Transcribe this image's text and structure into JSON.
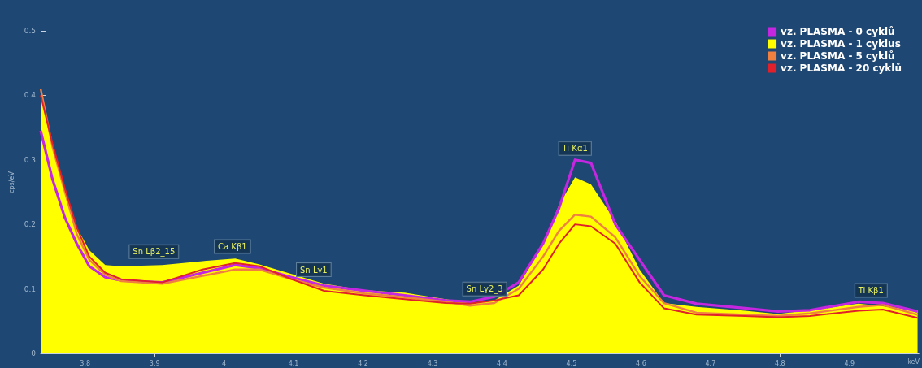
{
  "chart_data": {
    "type": "line",
    "xlabel": "keV",
    "ylabel": "cps/eV",
    "xlim": [
      3.736,
      5.0
    ],
    "ylim": [
      0,
      0.53
    ],
    "xticks": [
      3.8,
      3.9,
      4,
      4.1,
      4.2,
      4.3,
      4.4,
      4.5,
      4.6,
      4.7,
      4.8,
      4.9
    ],
    "yticks": [
      0,
      0.1,
      0.2,
      0.3,
      0.4,
      0.5
    ],
    "x": [
      3.736,
      3.753,
      3.771,
      3.788,
      3.806,
      3.829,
      3.852,
      3.911,
      3.969,
      4.016,
      4.051,
      4.097,
      4.144,
      4.202,
      4.26,
      4.319,
      4.354,
      4.389,
      4.424,
      4.459,
      4.482,
      4.505,
      4.528,
      4.563,
      4.598,
      4.633,
      4.68,
      4.75,
      4.797,
      4.843,
      4.913,
      4.948,
      4.998
    ],
    "legend": "top right",
    "grid": false,
    "marker": "none",
    "line_style": "solid",
    "series": [
      {
        "name": "vz. PLASMA - 0 cyklů",
        "color": "#c526e0",
        "values": [
          0.345,
          0.27,
          0.21,
          0.17,
          0.135,
          0.118,
          0.113,
          0.11,
          0.125,
          0.137,
          0.132,
          0.118,
          0.105,
          0.097,
          0.09,
          0.082,
          0.08,
          0.088,
          0.11,
          0.17,
          0.225,
          0.3,
          0.295,
          0.2,
          0.145,
          0.09,
          0.077,
          0.07,
          0.065,
          0.067,
          0.08,
          0.078,
          0.065
        ]
      },
      {
        "name": "vz. PLASMA - 1 cyklus",
        "type": "area",
        "color": "#ffff00",
        "values": [
          0.41,
          0.32,
          0.25,
          0.195,
          0.16,
          0.137,
          0.135,
          0.137,
          0.143,
          0.147,
          0.138,
          0.123,
          0.108,
          0.098,
          0.094,
          0.084,
          0.078,
          0.082,
          0.105,
          0.17,
          0.23,
          0.273,
          0.262,
          0.205,
          0.13,
          0.078,
          0.072,
          0.066,
          0.061,
          0.067,
          0.077,
          0.073,
          0.067
        ]
      },
      {
        "name": "vz. PLASMA - 5 cyklů",
        "color": "#f08040",
        "values": [
          0.41,
          0.32,
          0.25,
          0.185,
          0.145,
          0.122,
          0.112,
          0.108,
          0.12,
          0.13,
          0.13,
          0.115,
          0.102,
          0.093,
          0.087,
          0.08,
          0.074,
          0.078,
          0.1,
          0.15,
          0.19,
          0.215,
          0.212,
          0.18,
          0.12,
          0.078,
          0.063,
          0.06,
          0.058,
          0.062,
          0.072,
          0.075,
          0.06
        ]
      },
      {
        "name": "vz. PLASMA - 20 cyklů",
        "color": "#e0202a",
        "values": [
          0.4,
          0.325,
          0.255,
          0.195,
          0.15,
          0.125,
          0.115,
          0.11,
          0.13,
          0.14,
          0.135,
          0.115,
          0.097,
          0.09,
          0.084,
          0.078,
          0.077,
          0.082,
          0.09,
          0.13,
          0.17,
          0.2,
          0.197,
          0.17,
          0.11,
          0.07,
          0.06,
          0.058,
          0.056,
          0.058,
          0.066,
          0.068,
          0.055
        ]
      }
    ],
    "annotations": [
      {
        "text": "Sn Lβ2_15",
        "x": 3.899,
        "y": 0.14
      },
      {
        "text": "Ca Kβ1",
        "x": 4.012,
        "y": 0.148
      },
      {
        "text": "Sn Lγ1",
        "x": 4.129,
        "y": 0.112
      },
      {
        "text": "Sn Lγ2_3",
        "x": 4.375,
        "y": 0.082
      },
      {
        "text": "Ti Kα1",
        "x": 4.505,
        "y": 0.3
      },
      {
        "text": "Ti Kβ1",
        "x": 4.931,
        "y": 0.08
      }
    ]
  }
}
